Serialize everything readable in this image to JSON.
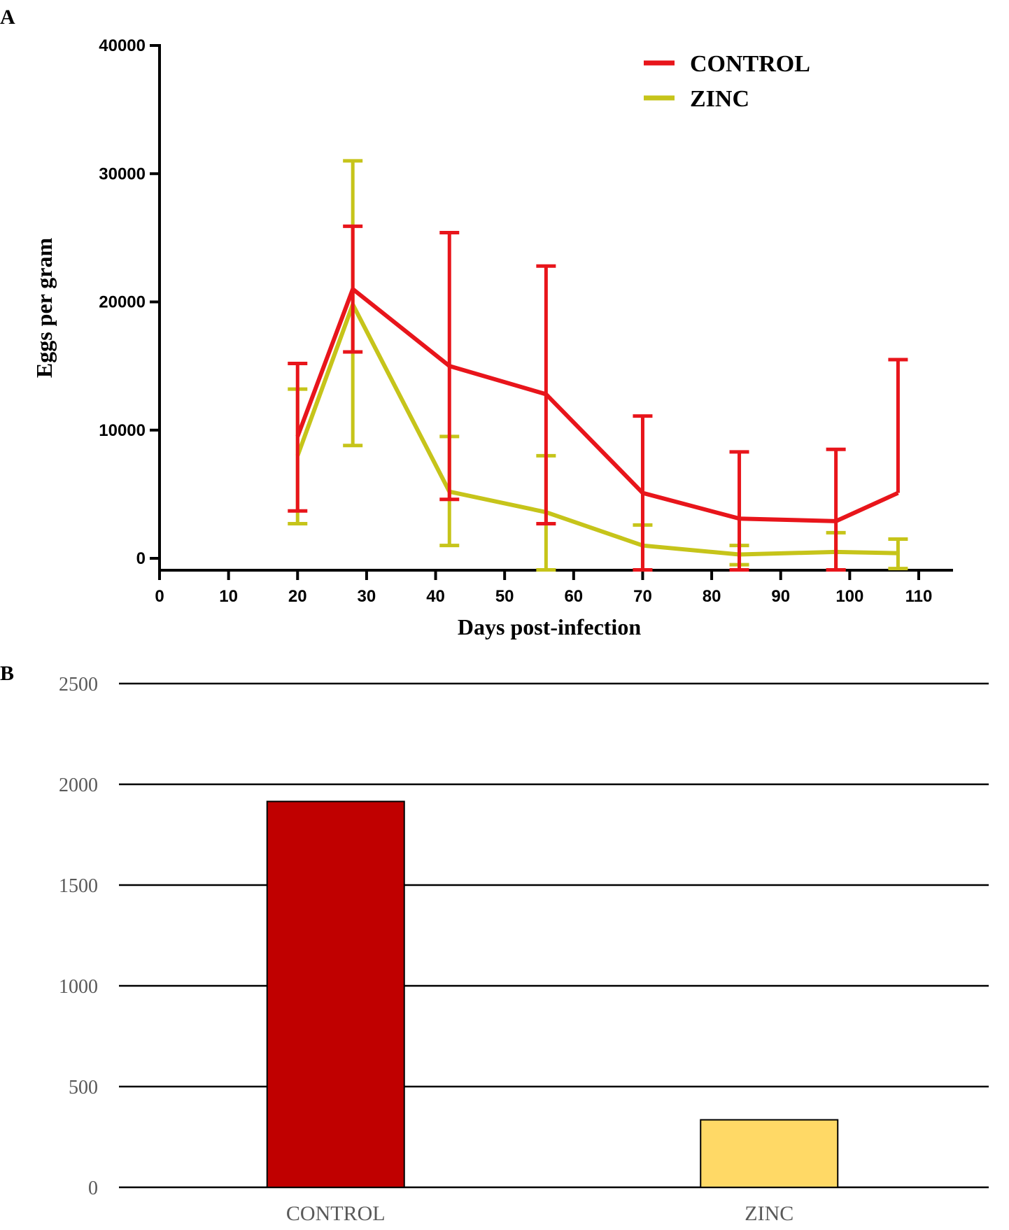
{
  "panels": {
    "a_label": "A",
    "b_label": "B"
  },
  "chart_data": [
    {
      "type": "line",
      "panel": "A",
      "xlabel": "Days post-infection",
      "ylabel": "Eggs per gram",
      "xlim": [
        0,
        115
      ],
      "ylim": [
        -900,
        40000
      ],
      "xticks": [
        "0",
        "10",
        "20",
        "30",
        "40",
        "50",
        "60",
        "70",
        "80",
        "90",
        "100",
        "110"
      ],
      "yticks": [
        "0",
        "10000",
        "20000",
        "30000",
        "40000"
      ],
      "legend": "top-right",
      "series": [
        {
          "name": "CONTROL",
          "color": "#e8151b",
          "x": [
            20,
            28,
            42,
            56,
            70,
            84,
            98,
            107
          ],
          "y": [
            9500,
            21000,
            15000,
            12800,
            5100,
            3100,
            2900,
            5100
          ],
          "err_low": [
            3700,
            16100,
            4600,
            2700,
            -900,
            -900,
            -900,
            null
          ],
          "err_high": [
            15200,
            25900,
            25400,
            22800,
            11100,
            8300,
            8500,
            15500
          ]
        },
        {
          "name": "ZINC",
          "color": "#c6c41a",
          "x": [
            20,
            28,
            42,
            56,
            70,
            84,
            98,
            107
          ],
          "y": [
            8000,
            19800,
            5200,
            3600,
            1000,
            300,
            500,
            400
          ],
          "err_low": [
            2700,
            8800,
            1000,
            -900,
            -900,
            -500,
            -900,
            -800
          ],
          "err_high": [
            13200,
            31000,
            9500,
            8000,
            2600,
            1000,
            2000,
            1500
          ]
        }
      ]
    },
    {
      "type": "bar",
      "panel": "B",
      "categories": [
        "CONTROL",
        "ZINC"
      ],
      "values": [
        1915,
        335
      ],
      "colors": [
        "#c00000",
        "#ffd966"
      ],
      "ylim": [
        0,
        2500
      ],
      "yticks": [
        "0",
        "500",
        "1000",
        "1500",
        "2000",
        "2500"
      ],
      "grid": true
    }
  ]
}
